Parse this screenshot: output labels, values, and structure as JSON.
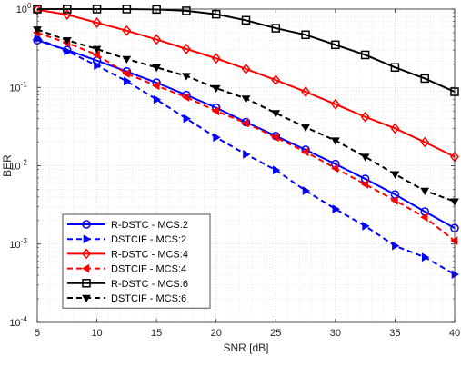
{
  "chart_data": {
    "type": "line",
    "xlabel": "SNR [dB]",
    "ylabel": "BER",
    "xlim": [
      5,
      40
    ],
    "ylim": [
      0.0001,
      1
    ],
    "yscale": "log",
    "grid": true,
    "legend_position": "bottom-left",
    "x_ticks": [
      5,
      10,
      15,
      20,
      25,
      30,
      35,
      40
    ],
    "y_ticks": [
      {
        "value": 0.0001,
        "base": "10",
        "exp": "-4"
      },
      {
        "value": 0.001,
        "base": "10",
        "exp": "-3"
      },
      {
        "value": 0.01,
        "base": "10",
        "exp": "-2"
      },
      {
        "value": 0.1,
        "base": "10",
        "exp": "-1"
      },
      {
        "value": 1,
        "base": "10",
        "exp": "0"
      }
    ],
    "x": [
      5,
      7.5,
      10,
      12.5,
      15,
      17.5,
      20,
      22.5,
      25,
      27.5,
      30,
      32.5,
      35,
      37.5,
      40
    ],
    "series": [
      {
        "name": "R-DSTC - MCS:2",
        "color": "#0000ff",
        "dash": "solid",
        "marker": "circle",
        "values": [
          0.4,
          0.3,
          0.22,
          0.16,
          0.115,
          0.08,
          0.055,
          0.036,
          0.024,
          0.016,
          0.0105,
          0.0068,
          0.0043,
          0.0026,
          0.0016
        ]
      },
      {
        "name": "DSTCIF - MCS:2",
        "color": "#0000ff",
        "dash": "dashed",
        "marker": "triangle-right",
        "values": [
          0.42,
          0.29,
          0.19,
          0.12,
          0.07,
          0.04,
          0.023,
          0.014,
          0.0088,
          0.0048,
          0.0028,
          0.0017,
          0.00095,
          0.00068,
          0.00041
        ]
      },
      {
        "name": "R-DSTC - MCS:4",
        "color": "#ff0000",
        "dash": "solid",
        "marker": "diamond",
        "values": [
          0.98,
          0.85,
          0.67,
          0.53,
          0.41,
          0.31,
          0.235,
          0.172,
          0.124,
          0.088,
          0.061,
          0.042,
          0.03,
          0.02,
          0.013
        ]
      },
      {
        "name": "DSTCIF - MCS:4",
        "color": "#ff0000",
        "dash": "dashed",
        "marker": "triangle-left",
        "values": [
          0.5,
          0.37,
          0.26,
          0.15,
          0.105,
          0.075,
          0.05,
          0.035,
          0.023,
          0.015,
          0.0093,
          0.0058,
          0.0036,
          0.0022,
          0.0011
        ]
      },
      {
        "name": "R-DSTC - MCS:6",
        "color": "#000000",
        "dash": "solid",
        "marker": "square",
        "values": [
          1.0,
          1.0,
          1.0,
          1.0,
          0.99,
          0.95,
          0.86,
          0.72,
          0.57,
          0.47,
          0.35,
          0.26,
          0.18,
          0.13,
          0.088
        ]
      },
      {
        "name": "DSTCIF - MCS:6",
        "color": "#000000",
        "dash": "dashed",
        "marker": "triangle-down",
        "values": [
          0.55,
          0.4,
          0.31,
          0.23,
          0.18,
          0.14,
          0.098,
          0.072,
          0.047,
          0.031,
          0.021,
          0.013,
          0.0078,
          0.0048,
          0.0035
        ]
      }
    ]
  }
}
